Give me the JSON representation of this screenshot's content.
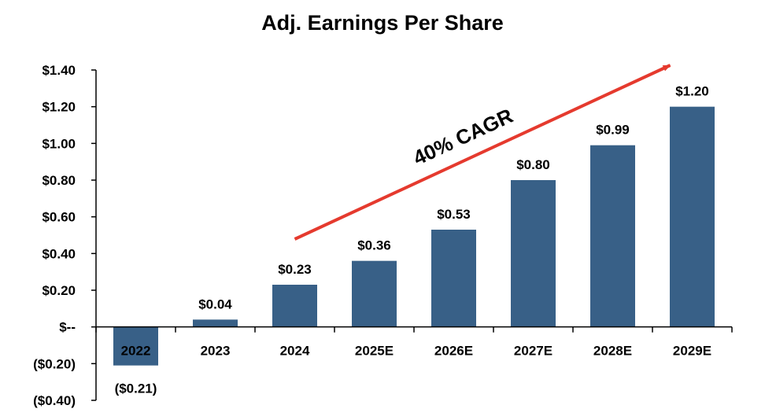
{
  "chart_data": {
    "type": "bar",
    "title": "Adj. Earnings Per Share",
    "categories": [
      "2022",
      "2023",
      "2024",
      "2025E",
      "2026E",
      "2027E",
      "2028E",
      "2029E"
    ],
    "values": [
      -0.21,
      0.04,
      0.23,
      0.36,
      0.53,
      0.8,
      0.99,
      1.2
    ],
    "data_labels": [
      "($0.21)",
      "$0.04",
      "$0.23",
      "$0.36",
      "$0.53",
      "$0.80",
      "$0.99",
      "$1.20"
    ],
    "ylim": [
      -0.4,
      1.4
    ],
    "y_ticks": [
      1.4,
      1.2,
      1.0,
      0.8,
      0.6,
      0.4,
      0.2,
      0.0,
      -0.2,
      -0.4
    ],
    "y_tick_labels": [
      "$1.40",
      "$1.20",
      "$1.00",
      "$0.80",
      "$0.60",
      "$0.40",
      "$0.20",
      "$--",
      "($0.20)",
      "($0.40)"
    ],
    "xlabel": "",
    "ylabel": "",
    "grid": false,
    "bar_color": "#386087",
    "annotation": {
      "text": "40% CAGR",
      "color": "#e53a2e",
      "from_category": "2024",
      "to_category": "2029E"
    }
  }
}
